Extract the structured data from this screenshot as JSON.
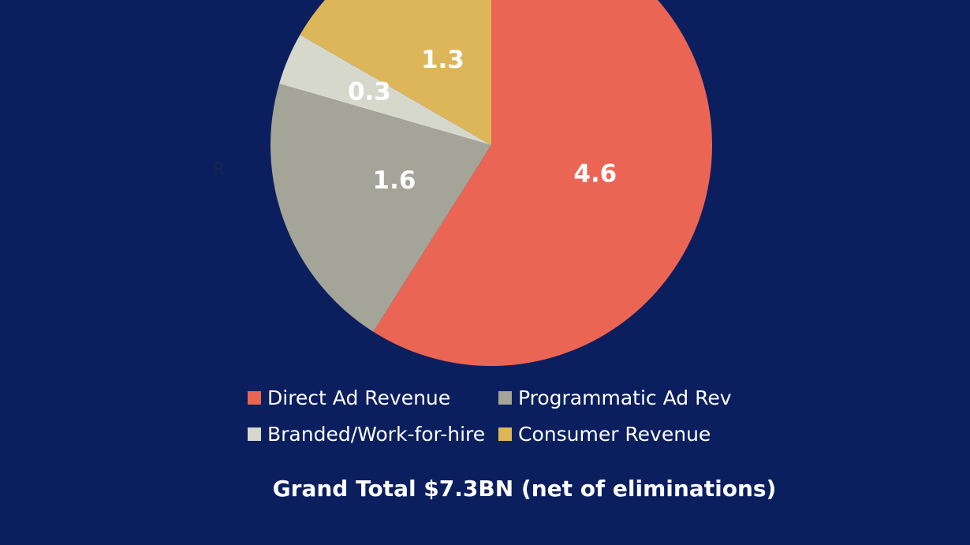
{
  "colors": {
    "background": "#0b1f5e",
    "text": "#ffffff"
  },
  "chart_data": {
    "type": "pie",
    "title": "",
    "categories": [
      "Direct Ad Revenue",
      "Programmatic Ad Rev",
      "Branded/Work-for-hire",
      "Consumer Revenue"
    ],
    "values": [
      4.6,
      1.6,
      0.3,
      1.3
    ],
    "value_labels": [
      "4.6",
      "1.6",
      "0.3",
      "1.3"
    ],
    "colors": [
      "#eb6554",
      "#a4a498",
      "#d7d8cc",
      "#ddb65a"
    ],
    "legend_position": "bottom",
    "unit": "$BN"
  },
  "legend": {
    "items": [
      {
        "label": "Direct Ad Revenue",
        "color": "#eb6554"
      },
      {
        "label": "Programmatic Ad Rev",
        "color": "#a4a498"
      },
      {
        "label": "Branded/Work-for-hire",
        "color": "#d7d8cc"
      },
      {
        "label": "Consumer Revenue",
        "color": "#ddb65a"
      }
    ]
  },
  "footer": {
    "grand_total": "Grand Total $7.3BN (net of eliminations)"
  },
  "stray_mark": "R"
}
